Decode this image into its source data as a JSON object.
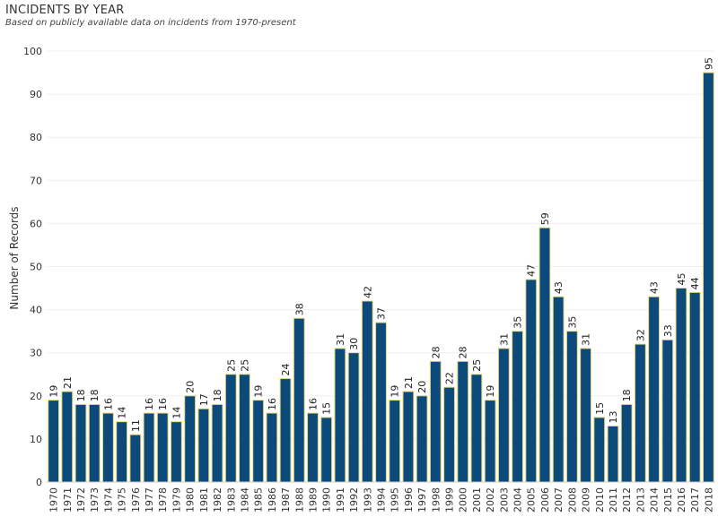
{
  "header": {
    "title": "INCIDENTS BY YEAR",
    "subtitle": "Based on publicly available data on incidents from 1970-present"
  },
  "chart_data": {
    "type": "bar",
    "title": "INCIDENTS BY YEAR",
    "subtitle": "Based on publicly available data on incidents from 1970-present",
    "xlabel": "",
    "ylabel": "Number of Records",
    "ylim": [
      0,
      100
    ],
    "yticks": [
      0,
      10,
      20,
      30,
      40,
      50,
      60,
      70,
      80,
      90,
      100
    ],
    "grid": true,
    "bar_color": "#0b4a7a",
    "bar_outline": "#e6d77a",
    "data_labels": true,
    "categories": [
      "1970",
      "1971",
      "1972",
      "1973",
      "1974",
      "1975",
      "1976",
      "1977",
      "1978",
      "1979",
      "1980",
      "1981",
      "1982",
      "1983",
      "1984",
      "1985",
      "1986",
      "1987",
      "1988",
      "1989",
      "1990",
      "1991",
      "1992",
      "1993",
      "1994",
      "1995",
      "1996",
      "1997",
      "1998",
      "1999",
      "2000",
      "2001",
      "2002",
      "2003",
      "2004",
      "2005",
      "2006",
      "2007",
      "2008",
      "2009",
      "2010",
      "2011",
      "2012",
      "2013",
      "2014",
      "2015",
      "2016",
      "2017",
      "2018"
    ],
    "values": [
      19,
      21,
      18,
      18,
      16,
      14,
      11,
      16,
      16,
      14,
      20,
      17,
      18,
      25,
      25,
      19,
      16,
      24,
      38,
      16,
      15,
      31,
      30,
      42,
      37,
      19,
      21,
      20,
      28,
      22,
      28,
      25,
      19,
      31,
      35,
      47,
      59,
      43,
      35,
      31,
      15,
      13,
      18,
      32,
      43,
      33,
      45,
      44,
      95
    ]
  }
}
